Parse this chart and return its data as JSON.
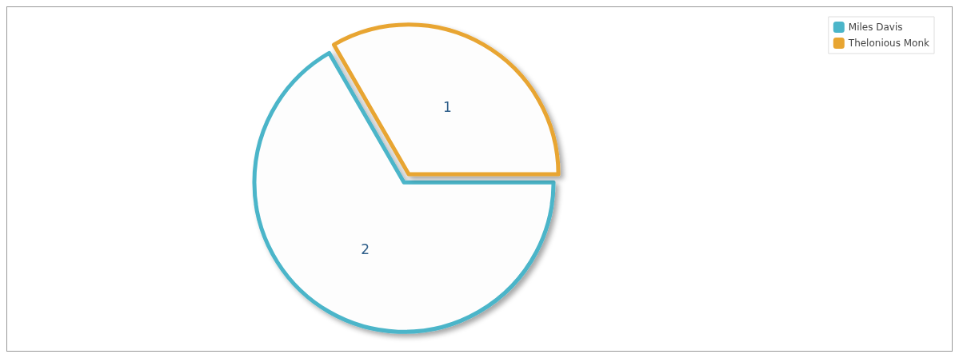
{
  "chart_data": {
    "type": "pie",
    "categories": [
      "Miles Davis",
      "Thelonious Monk"
    ],
    "values": [
      2,
      1
    ],
    "colors": [
      "#4bb5c9",
      "#e8a531"
    ],
    "data_labels": true,
    "legend": "top right"
  }
}
